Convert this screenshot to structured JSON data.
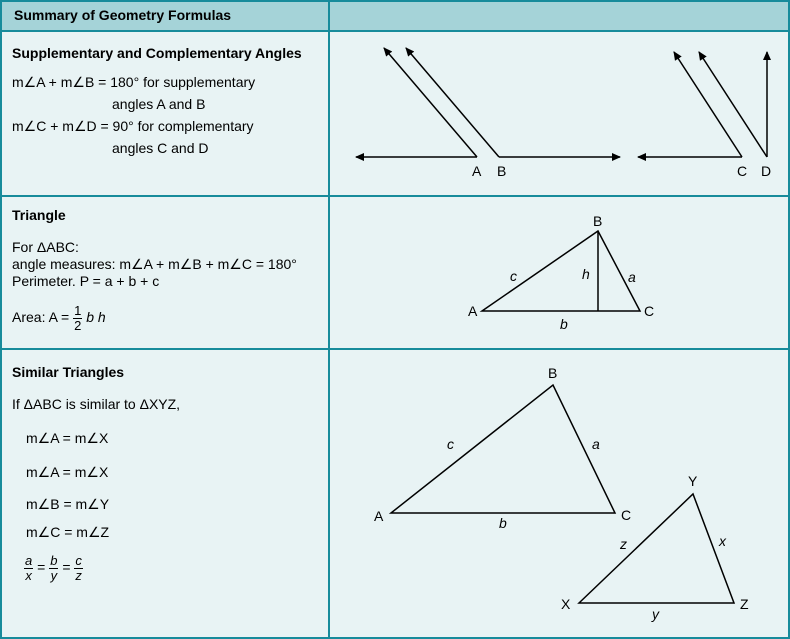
{
  "header": {
    "title": "Summary of Geometry Formulas"
  },
  "angles": {
    "title": "Supplementary and Complementary Angles",
    "line1": "m∠A + m∠B = 180° for supplementary",
    "line2": "angles A and B",
    "line3": "m∠C + m∠D = 90° for complementary",
    "line4": "angles C and D",
    "labels": {
      "a": "A",
      "b": "B",
      "c": "C",
      "d": "D"
    }
  },
  "triangle": {
    "title": "Triangle",
    "for_line": "For ΔABC:",
    "angle_line": "angle measures: m∠A + m∠B + m∠C = 180°",
    "perimeter_line": "Perimeter. P = a + b + c",
    "area_prefix": "Area:  A =",
    "area_num": "1",
    "area_den": "2",
    "area_suffix": "b h",
    "labels": {
      "A": "A",
      "B": "B",
      "C": "C",
      "a": "a",
      "b": "b",
      "c": "c",
      "h": "h"
    }
  },
  "similar": {
    "title": "Similar Triangles",
    "if_line": "If ΔABC is similar to ΔXYZ,",
    "eq1": "m∠A = m∠X",
    "eq2": "m∠A = m∠X",
    "eq3": "m∠B = m∠Y",
    "eq4": "m∠C = m∠Z",
    "ratio": {
      "n1": "a",
      "d1": "x",
      "n2": "b",
      "d2": "y",
      "n3": "c",
      "d3": "z",
      "eq": "="
    },
    "big_labels": {
      "A": "A",
      "B": "B",
      "C": "C",
      "a": "a",
      "b": "b",
      "c": "c"
    },
    "small_labels": {
      "X": "X",
      "Y": "Y",
      "Z": "Z",
      "x": "x",
      "y": "y",
      "z": "z"
    }
  }
}
